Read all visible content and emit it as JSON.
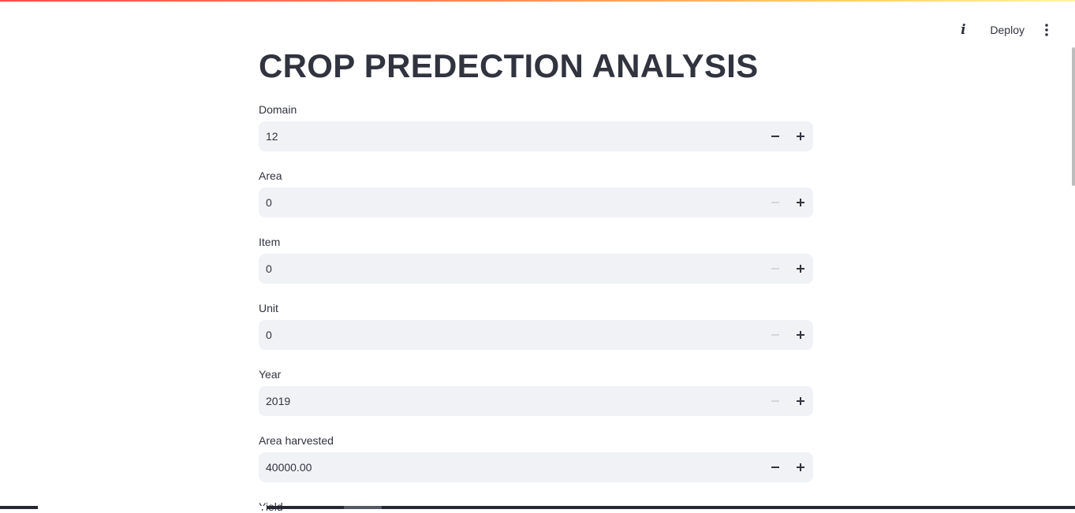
{
  "header": {
    "info_glyph": "i",
    "deploy_label": "Deploy",
    "menu_icon": "kebab-vertical-icon"
  },
  "page": {
    "title": "CROP PREDECTION ANALYSIS"
  },
  "fields": [
    {
      "label": "Domain",
      "value": "12",
      "minus_enabled": true
    },
    {
      "label": "Area",
      "value": "0",
      "minus_enabled": false
    },
    {
      "label": "Item",
      "value": "0",
      "minus_enabled": false
    },
    {
      "label": "Unit",
      "value": "0",
      "minus_enabled": false
    },
    {
      "label": "Year",
      "value": "2019",
      "minus_enabled": false
    },
    {
      "label": "Area harvested",
      "value": "40000.00",
      "minus_enabled": true
    }
  ],
  "partial_field": {
    "label": "Yield"
  },
  "colors": {
    "accent_gradient_start": "#ff4b4b",
    "accent_gradient_end": "#fff3a8",
    "input_background": "#f0f2f6",
    "text": "#31333f"
  }
}
